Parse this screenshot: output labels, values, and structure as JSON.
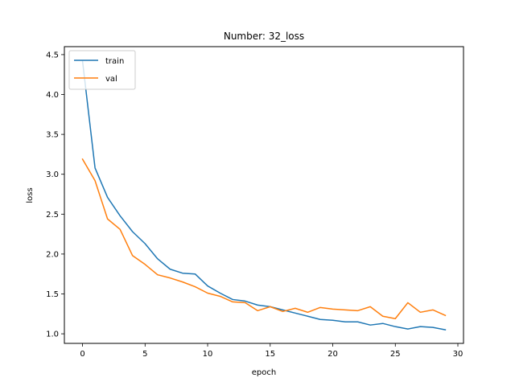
{
  "chart_data": {
    "type": "line",
    "title": "Number: 32_loss",
    "xlabel": "epoch",
    "ylabel": "loss",
    "xlim": [
      -1.45,
      30.45
    ],
    "ylim": [
      0.88,
      4.6
    ],
    "xticks": [
      0,
      5,
      10,
      15,
      20,
      25,
      30
    ],
    "yticks": [
      1.0,
      1.5,
      2.0,
      2.5,
      3.0,
      3.5,
      4.0,
      4.5
    ],
    "ytick_labels": [
      "1.0",
      "1.5",
      "2.0",
      "2.5",
      "3.0",
      "3.5",
      "4.0",
      "4.5"
    ],
    "grid": false,
    "legend_position": "top-left",
    "x": [
      0,
      1,
      2,
      3,
      4,
      5,
      6,
      7,
      8,
      9,
      10,
      11,
      12,
      13,
      14,
      15,
      16,
      17,
      18,
      19,
      20,
      21,
      22,
      23,
      24,
      25,
      26,
      27,
      28,
      29
    ],
    "series": [
      {
        "name": "train",
        "color": "#1f77b4",
        "values": [
          4.42,
          3.08,
          2.71,
          2.48,
          2.28,
          2.13,
          1.94,
          1.81,
          1.76,
          1.75,
          1.6,
          1.51,
          1.43,
          1.41,
          1.36,
          1.34,
          1.3,
          1.26,
          1.22,
          1.18,
          1.17,
          1.15,
          1.15,
          1.11,
          1.13,
          1.09,
          1.06,
          1.09,
          1.08,
          1.05
        ]
      },
      {
        "name": "val",
        "color": "#ff7f0e",
        "values": [
          3.19,
          2.92,
          2.44,
          2.31,
          1.98,
          1.87,
          1.74,
          1.7,
          1.65,
          1.59,
          1.51,
          1.47,
          1.4,
          1.39,
          1.29,
          1.34,
          1.28,
          1.32,
          1.27,
          1.33,
          1.31,
          1.3,
          1.29,
          1.34,
          1.22,
          1.19,
          1.39,
          1.27,
          1.3,
          1.23
        ]
      }
    ]
  }
}
